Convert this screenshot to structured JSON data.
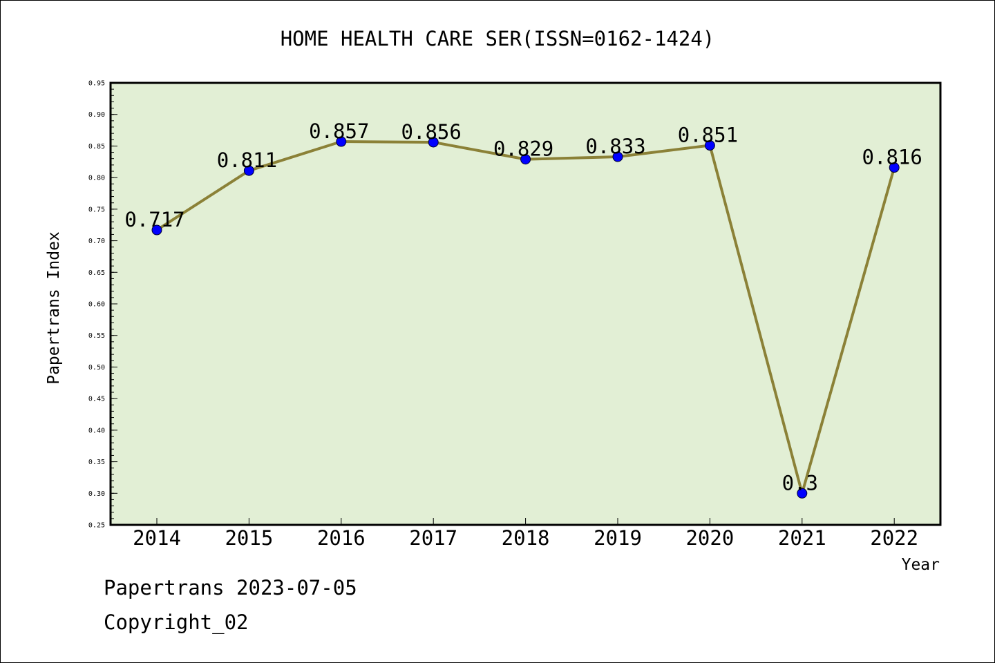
{
  "chart_data": {
    "type": "line",
    "title": "HOME HEALTH CARE SER(ISSN=0162-1424)",
    "xlabel": "Year",
    "ylabel": "Papertrans Index",
    "categories": [
      "2014",
      "2015",
      "2016",
      "2017",
      "2018",
      "2019",
      "2020",
      "2021",
      "2022"
    ],
    "series": [
      {
        "values": [
          0.717,
          0.811,
          0.857,
          0.856,
          0.829,
          0.833,
          0.851,
          0.3,
          0.816
        ]
      }
    ],
    "data_labels": [
      "0.717",
      "0.811",
      "0.857",
      "0.856",
      "0.829",
      "0.833",
      "0.851",
      "0.3",
      "0.816"
    ],
    "ylim": [
      0.25,
      0.95
    ],
    "yticks": [
      "0.25",
      "0.30",
      "0.35",
      "0.40",
      "0.45",
      "0.50",
      "0.55",
      "0.60",
      "0.65",
      "0.70",
      "0.75",
      "0.80",
      "0.85",
      "0.90",
      "0.95"
    ],
    "grid": false,
    "legend": "none",
    "colors": {
      "plot_background": "#e2efd5",
      "line": "#8b8137",
      "marker": "#0000ff",
      "axis": "#000000"
    }
  },
  "footer": {
    "date_line": "Papertrans 2023-07-05",
    "copyright": "Copyright_02"
  }
}
